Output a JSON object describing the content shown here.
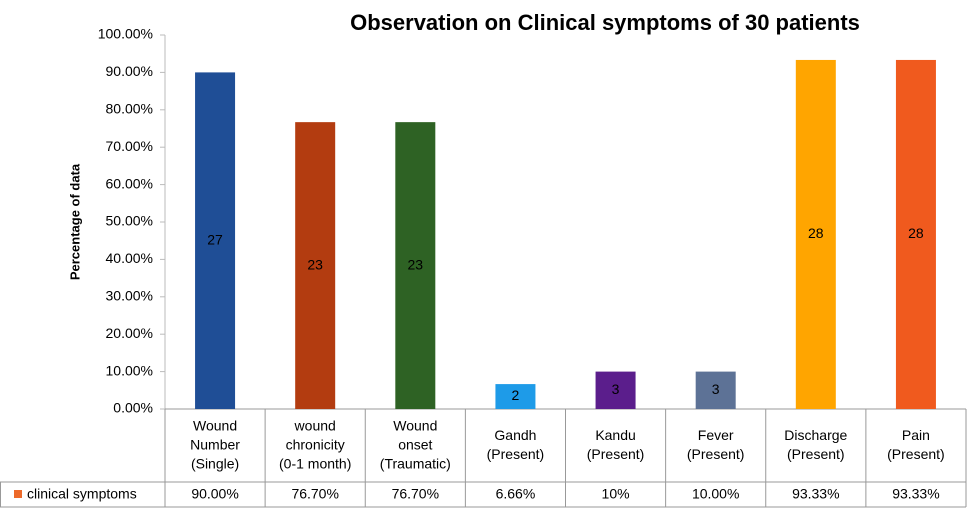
{
  "chart_data": {
    "type": "bar",
    "title": "Observation on Clinical symptoms of 30 patients",
    "y_label": "Percentage of data",
    "categories": [
      [
        "Wound",
        "Number",
        "(Single)"
      ],
      [
        "wound",
        "chronicity",
        "(0-1 month)"
      ],
      [
        "Wound",
        "onset",
        "(Traumatic)"
      ],
      [
        "Gandh",
        "(Present)"
      ],
      [
        "Kandu",
        "(Present)"
      ],
      [
        "Fever",
        "(Present)"
      ],
      [
        "Discharge",
        "(Present)"
      ],
      [
        "Pain",
        "(Present)"
      ]
    ],
    "series": [
      {
        "name": "clinical symptoms",
        "color": "#ed6a2a",
        "values": [
          90,
          76.7,
          76.7,
          6.66,
          10,
          10,
          93.33,
          93.33
        ],
        "value_labels": [
          "90.00%",
          "76.70%",
          "76.70%",
          "6.66%",
          "10%",
          "10.00%",
          "93.33%",
          "93.33%"
        ],
        "counts": [
          27,
          23,
          23,
          2,
          3,
          3,
          28,
          28
        ],
        "colors": [
          "#1f4e96",
          "#b33c10",
          "#2e6224",
          "#1e9be8",
          "#5b1e8c",
          "#5d7296",
          "#ffa500",
          "#f05a1e"
        ]
      }
    ],
    "ylim": [
      0,
      100
    ],
    "yticks": [
      {
        "value": 0,
        "label": "0.00%"
      },
      {
        "value": 10,
        "label": "10.00%"
      },
      {
        "value": 20,
        "label": "20.00%"
      },
      {
        "value": 30,
        "label": "30.00%"
      },
      {
        "value": 40,
        "label": "40.00%"
      },
      {
        "value": 50,
        "label": "50.00%"
      },
      {
        "value": 60,
        "label": "60.00%"
      },
      {
        "value": 70,
        "label": "70.00%"
      },
      {
        "value": 80,
        "label": "80.00%"
      },
      {
        "value": 90,
        "label": "90.00%"
      },
      {
        "value": 100,
        "label": "100.00%"
      }
    ],
    "grid": false
  }
}
